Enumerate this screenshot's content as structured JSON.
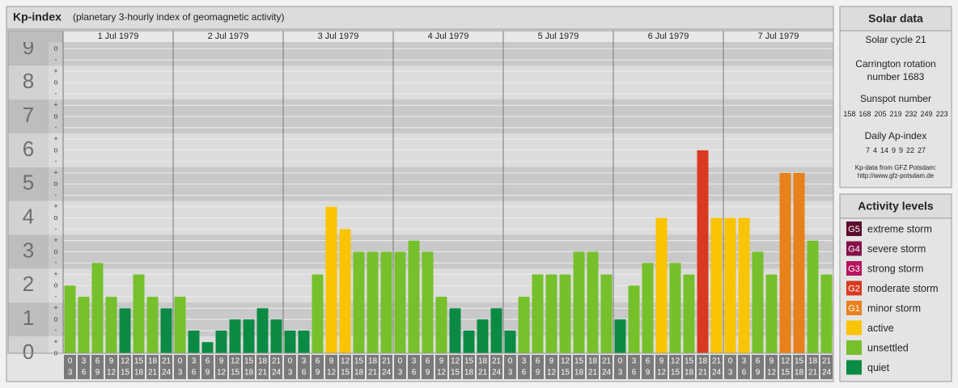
{
  "chart_data": {
    "type": "bar",
    "title": "Kp-index",
    "subtitle": "(planetary 3-hourly index of geomagnetic activity)",
    "days": [
      "1 Jul 1979",
      "2 Jul 1979",
      "3 Jul 1979",
      "4 Jul 1979",
      "5 Jul 1979",
      "6 Jul 1979",
      "7 Jul 1979"
    ],
    "slots": [
      [
        0,
        3
      ],
      [
        3,
        6
      ],
      [
        6,
        9
      ],
      [
        9,
        12
      ],
      [
        12,
        15
      ],
      [
        15,
        18
      ],
      [
        18,
        21
      ],
      [
        21,
        24
      ]
    ],
    "values": [
      2,
      1.67,
      2.67,
      1.67,
      1.33,
      2.33,
      1.67,
      1.33,
      1.67,
      0.67,
      0.33,
      0.67,
      1,
      1,
      1.33,
      1,
      0.67,
      0.67,
      2.33,
      4.33,
      3.67,
      3,
      3,
      3,
      3,
      3.33,
      3,
      1.67,
      1.33,
      0.67,
      1,
      1.33,
      0.67,
      1.67,
      2.33,
      2.33,
      2.33,
      3,
      3,
      2.33,
      1,
      2,
      2.67,
      4,
      2.67,
      2.33,
      6,
      4,
      4,
      4,
      3,
      2.33,
      5.33,
      5.33,
      3.33,
      2.33
    ],
    "colors": [
      "#76c02c",
      "#76c02c",
      "#76c02c",
      "#76c02c",
      "#0b8a44",
      "#76c02c",
      "#76c02c",
      "#0b8a44",
      "#76c02c",
      "#0b8a44",
      "#0b8a44",
      "#0b8a44",
      "#0b8a44",
      "#0b8a44",
      "#0b8a44",
      "#0b8a44",
      "#0b8a44",
      "#0b8a44",
      "#76c02c",
      "#f9c400",
      "#f9c400",
      "#76c02c",
      "#76c02c",
      "#76c02c",
      "#76c02c",
      "#76c02c",
      "#76c02c",
      "#76c02c",
      "#0b8a44",
      "#0b8a44",
      "#0b8a44",
      "#0b8a44",
      "#0b8a44",
      "#76c02c",
      "#76c02c",
      "#76c02c",
      "#76c02c",
      "#76c02c",
      "#76c02c",
      "#76c02c",
      "#0b8a44",
      "#76c02c",
      "#76c02c",
      "#f9c400",
      "#76c02c",
      "#76c02c",
      "#d9391e",
      "#f9c400",
      "#f9c400",
      "#f9c400",
      "#76c02c",
      "#76c02c",
      "#e8801c",
      "#e8801c",
      "#76c02c",
      "#76c02c"
    ],
    "ylim": [
      0,
      9.2
    ],
    "yticks": [
      0,
      1,
      2,
      3,
      4,
      5,
      6,
      7,
      8,
      9
    ],
    "yminorticks": [
      {
        "value": 0,
        "label": "o"
      },
      {
        "value": 0.33,
        "label": "+"
      },
      {
        "value": 0.67,
        "label": "-"
      },
      {
        "value": 1,
        "label": "o"
      },
      {
        "value": 1.33,
        "label": "+"
      },
      {
        "value": 1.67,
        "label": "-"
      },
      {
        "value": 2,
        "label": "o"
      },
      {
        "value": 2.33,
        "label": "+"
      },
      {
        "value": 2.67,
        "label": "-"
      },
      {
        "value": 3,
        "label": "o"
      },
      {
        "value": 3.33,
        "label": "+"
      },
      {
        "value": 3.67,
        "label": "-"
      },
      {
        "value": 4,
        "label": "o"
      },
      {
        "value": 4.33,
        "label": "+"
      },
      {
        "value": 4.67,
        "label": "-"
      },
      {
        "value": 5,
        "label": "o"
      },
      {
        "value": 5.33,
        "label": "+"
      },
      {
        "value": 5.67,
        "label": "-"
      },
      {
        "value": 6,
        "label": "o"
      },
      {
        "value": 6.33,
        "label": "+"
      },
      {
        "value": 6.67,
        "label": "-"
      },
      {
        "value": 7,
        "label": "o"
      },
      {
        "value": 7.33,
        "label": "+"
      },
      {
        "value": 7.67,
        "label": "-"
      },
      {
        "value": 8,
        "label": "o"
      },
      {
        "value": 8.33,
        "label": "+"
      },
      {
        "value": 8.67,
        "label": "-"
      },
      {
        "value": 9,
        "label": "o"
      }
    ],
    "grid": true
  },
  "solar_data": {
    "title": "Solar data",
    "solar_cycle": "Solar cycle 21",
    "carrington": [
      "Carrington rotation",
      "number 1683"
    ],
    "sunspot_title": "Sunspot number",
    "sunspot_numbers": [
      158,
      168,
      205,
      219,
      232,
      249,
      223
    ],
    "ap_title": "Daily Ap-index",
    "ap_values": [
      7,
      4,
      14,
      9,
      9,
      22,
      27
    ],
    "source": [
      "Kp-data from GFZ Potsdam:",
      "http://www.gfz-potsdam.de"
    ]
  },
  "activity_levels": {
    "title": "Activity levels",
    "items": [
      {
        "badge": "G5",
        "name": "extreme storm",
        "color": "#5c0a2e"
      },
      {
        "badge": "G4",
        "name": "severe storm",
        "color": "#86104a"
      },
      {
        "badge": "G3",
        "name": "strong storm",
        "color": "#b8145e"
      },
      {
        "badge": "G2",
        "name": "moderate storm",
        "color": "#d9391e"
      },
      {
        "badge": "G1",
        "name": "minor storm",
        "color": "#e8801c"
      },
      {
        "name": "active",
        "color": "#f9c400"
      },
      {
        "name": "unsettled",
        "color": "#76c02c"
      },
      {
        "name": "quiet",
        "color": "#0b8a44"
      }
    ]
  }
}
